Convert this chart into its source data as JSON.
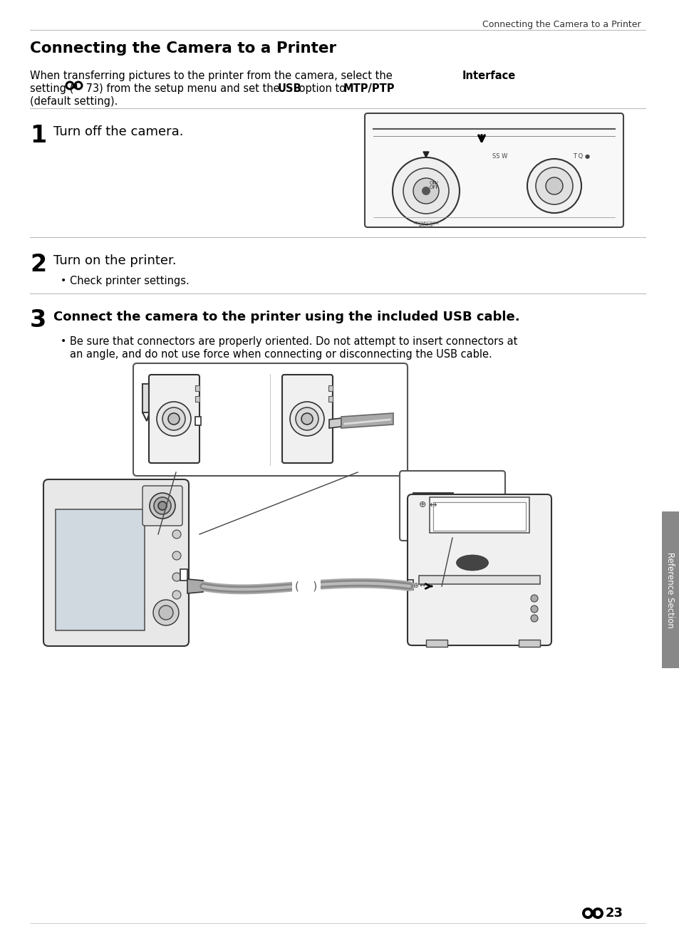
{
  "page_title": "Connecting the Camera to a Printer",
  "section_title": "Connecting the Camera to a Printer",
  "bg_color": "#ffffff",
  "text_color": "#000000",
  "line_color": "#bbbbbb",
  "tab_color": "#888888",
  "side_text": "Reference Section",
  "footer_number": "23",
  "step1_title": "Turn off the camera.",
  "step2_title": "Turn on the printer.",
  "step2_bullet": "Check printer settings.",
  "step3_title": "Connect the camera to the printer using the included USB cable.",
  "step3_bullet1": "Be sure that connectors are properly oriented. Do not attempt to insert connectors at",
  "step3_bullet2": "an angle, and do not use force when connecting or disconnecting the USB cable.",
  "intro1": "When transferring pictures to the printer from the camera, select the ",
  "intro1b": "Interface",
  "intro2a": "setting (",
  "intro2b": " 73) from the setup menu and set the ",
  "intro2c": "USB",
  "intro2d": " option to ",
  "intro2e": "MTP/PTP",
  "intro3": "(default setting)."
}
